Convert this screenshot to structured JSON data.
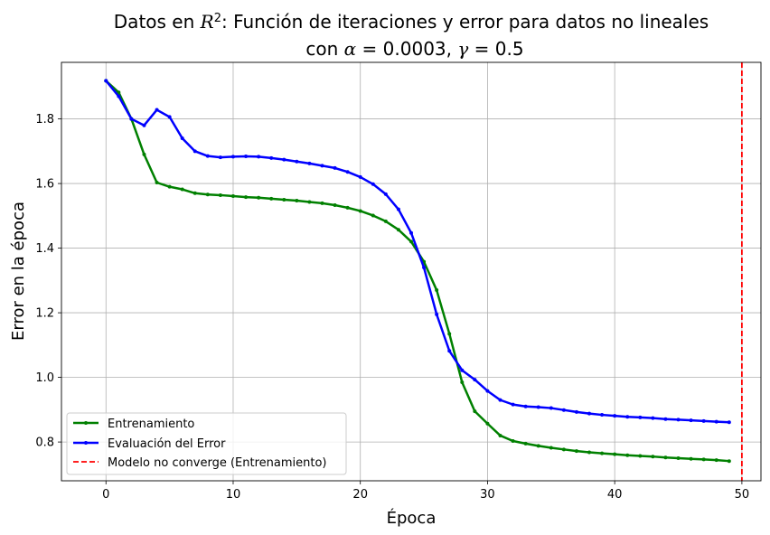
{
  "chart_data": {
    "type": "line",
    "title_line1_prefix": "Datos en ",
    "title_line1_math": "R",
    "title_line1_sup": "2",
    "title_line1_suffix": ": Función de iteraciones y error para datos no lineales",
    "title_line2_prefix": "con ",
    "title_line2_alpha": "α",
    "title_line2_alpha_value": " = 0.0003, ",
    "title_line2_gamma": "γ",
    "title_line2_gamma_value": " = 0.5",
    "xlabel": "Época",
    "ylabel": "Error en la época",
    "xlim": [
      -3.5,
      51.5
    ],
    "ylim": [
      0.68,
      1.975
    ],
    "xticks": [
      0,
      10,
      20,
      30,
      40,
      50
    ],
    "yticks": [
      0.8,
      1.0,
      1.2,
      1.4,
      1.6,
      1.8
    ],
    "ytick_labels": [
      "0.8",
      "1.0",
      "1.2",
      "1.4",
      "1.6",
      "1.8"
    ],
    "grid": true,
    "legend_position": "lower-left",
    "x": [
      0,
      1,
      2,
      3,
      4,
      5,
      6,
      7,
      8,
      9,
      10,
      11,
      12,
      13,
      14,
      15,
      16,
      17,
      18,
      19,
      20,
      21,
      22,
      23,
      24,
      25,
      26,
      27,
      28,
      29,
      30,
      31,
      32,
      33,
      34,
      35,
      36,
      37,
      38,
      39,
      40,
      41,
      42,
      43,
      44,
      45,
      46,
      47,
      48,
      49
    ],
    "series": [
      {
        "name": "Entrenamiento",
        "color": "#008000",
        "style": "solid-marker",
        "values": [
          1.918,
          1.882,
          1.8,
          1.69,
          1.603,
          1.59,
          1.582,
          1.57,
          1.566,
          1.564,
          1.561,
          1.558,
          1.556,
          1.553,
          1.55,
          1.547,
          1.543,
          1.539,
          1.533,
          1.525,
          1.515,
          1.501,
          1.483,
          1.457,
          1.42,
          1.358,
          1.27,
          1.135,
          0.985,
          0.895,
          0.857,
          0.82,
          0.803,
          0.795,
          0.788,
          0.782,
          0.777,
          0.772,
          0.768,
          0.765,
          0.762,
          0.759,
          0.757,
          0.755,
          0.752,
          0.75,
          0.748,
          0.746,
          0.744,
          0.741
        ]
      },
      {
        "name": "Evaluación del Error",
        "color": "#0000ff",
        "style": "solid-marker",
        "values": [
          1.918,
          1.87,
          1.8,
          1.78,
          1.828,
          1.806,
          1.74,
          1.7,
          1.685,
          1.681,
          1.683,
          1.684,
          1.683,
          1.679,
          1.674,
          1.668,
          1.662,
          1.655,
          1.648,
          1.636,
          1.62,
          1.598,
          1.567,
          1.52,
          1.447,
          1.34,
          1.195,
          1.082,
          1.022,
          0.993,
          0.958,
          0.93,
          0.916,
          0.91,
          0.908,
          0.905,
          0.899,
          0.893,
          0.888,
          0.884,
          0.881,
          0.878,
          0.876,
          0.874,
          0.871,
          0.869,
          0.867,
          0.865,
          0.863,
          0.861
        ]
      }
    ],
    "vline": {
      "x": 50,
      "name": "Modelo no converge (Entrenamiento)",
      "color": "#ff0000",
      "style": "dashed"
    }
  }
}
